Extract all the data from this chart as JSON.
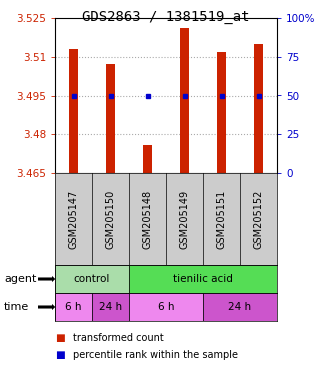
{
  "title": "GDS2863 / 1381519_at",
  "samples": [
    "GSM205147",
    "GSM205150",
    "GSM205148",
    "GSM205149",
    "GSM205151",
    "GSM205152"
  ],
  "bar_values": [
    3.513,
    3.507,
    3.476,
    3.521,
    3.512,
    3.515
  ],
  "bar_bottom": 3.465,
  "percentile_values": [
    3.495,
    3.495,
    3.495,
    3.495,
    3.495,
    3.495
  ],
  "ylim_left": [
    3.465,
    3.525
  ],
  "ylim_right": [
    0,
    100
  ],
  "yticks_left": [
    3.465,
    3.48,
    3.495,
    3.51,
    3.525
  ],
  "yticks_right": [
    0,
    25,
    50,
    75,
    100
  ],
  "ytick_labels_left": [
    "3.465",
    "3.48",
    "3.495",
    "3.51",
    "3.525"
  ],
  "ytick_labels_right": [
    "0",
    "25",
    "50",
    "75",
    "100%"
  ],
  "bar_color": "#cc2200",
  "percentile_color": "#0000cc",
  "grid_color": "#aaaaaa",
  "agent_groups": [
    {
      "label": "control",
      "start": 0,
      "end": 2,
      "color": "#aaddaa"
    },
    {
      "label": "tienilic acid",
      "start": 2,
      "end": 6,
      "color": "#55dd55"
    }
  ],
  "time_groups": [
    {
      "label": "6 h",
      "start": 0,
      "end": 1,
      "color": "#ee88ee"
    },
    {
      "label": "24 h",
      "start": 1,
      "end": 2,
      "color": "#cc55cc"
    },
    {
      "label": "6 h",
      "start": 2,
      "end": 4,
      "color": "#ee88ee"
    },
    {
      "label": "24 h",
      "start": 4,
      "end": 6,
      "color": "#cc55cc"
    }
  ],
  "legend_items": [
    {
      "label": "transformed count",
      "color": "#cc2200"
    },
    {
      "label": "percentile rank within the sample",
      "color": "#0000cc"
    }
  ],
  "agent_label": "agent",
  "time_label": "time",
  "background_color": "#ffffff",
  "title_fontsize": 10,
  "tick_fontsize": 7.5,
  "bar_width": 0.25
}
